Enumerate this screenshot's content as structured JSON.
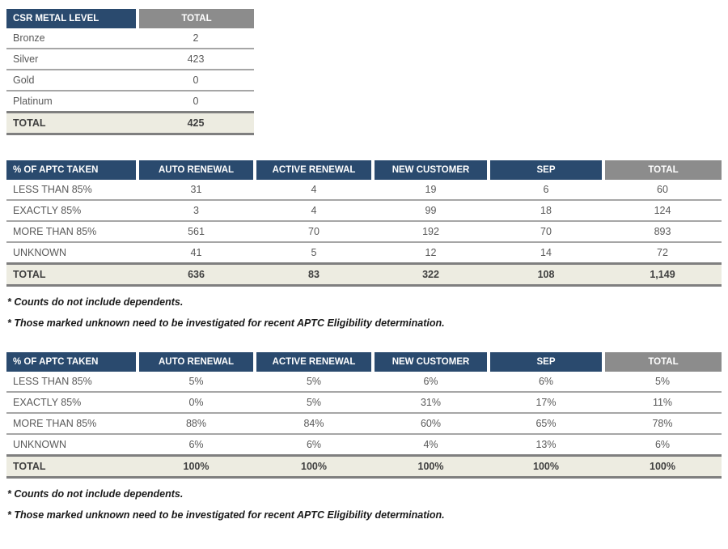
{
  "colors": {
    "header_navy": "#2A4A6E",
    "header_gray": "#8C8C8C",
    "total_row_bg": "#EDECE1",
    "thick_border": "#7F7F7F",
    "row_border": "#A6A6A6",
    "cell_text": "#595959",
    "header_text": "#FFFFFF"
  },
  "metal_table": {
    "headers": [
      "CSR METAL LEVEL",
      "TOTAL"
    ],
    "rows": [
      [
        "Bronze",
        "2"
      ],
      [
        "Silver",
        "423"
      ],
      [
        "Gold",
        "0"
      ],
      [
        "Platinum",
        "0"
      ]
    ],
    "total_row": [
      "TOTAL",
      "425"
    ]
  },
  "aptc_counts_table": {
    "headers": [
      "% OF APTC TAKEN",
      "AUTO RENEWAL",
      "ACTIVE RENEWAL",
      "NEW CUSTOMER",
      "SEP",
      "TOTAL"
    ],
    "rows": [
      [
        "LESS THAN 85%",
        "31",
        "4",
        "19",
        "6",
        "60"
      ],
      [
        "EXACTLY 85%",
        "3",
        "4",
        "99",
        "18",
        "124"
      ],
      [
        "MORE THAN 85%",
        "561",
        "70",
        "192",
        "70",
        "893"
      ],
      [
        "UNKNOWN",
        "41",
        "5",
        "12",
        "14",
        "72"
      ]
    ],
    "total_row": [
      "TOTAL",
      "636",
      "83",
      "322",
      "108",
      "1,149"
    ],
    "footnotes": [
      "* Counts do not include dependents.",
      "* Those marked unknown need to be investigated for recent APTC Eligibility determination."
    ]
  },
  "aptc_percent_table": {
    "headers": [
      "% OF APTC TAKEN",
      "AUTO RENEWAL",
      "ACTIVE RENEWAL",
      "NEW CUSTOMER",
      "SEP",
      "TOTAL"
    ],
    "rows": [
      [
        "LESS THAN 85%",
        "5%",
        "5%",
        "6%",
        "6%",
        "5%"
      ],
      [
        "EXACTLY 85%",
        "0%",
        "5%",
        "31%",
        "17%",
        "11%"
      ],
      [
        "MORE THAN 85%",
        "88%",
        "84%",
        "60%",
        "65%",
        "78%"
      ],
      [
        "UNKNOWN",
        "6%",
        "6%",
        "4%",
        "13%",
        "6%"
      ]
    ],
    "total_row": [
      "TOTAL",
      "100%",
      "100%",
      "100%",
      "100%",
      "100%"
    ],
    "footnotes": [
      "* Counts do not include dependents.",
      "* Those marked unknown need to be investigated for recent APTC Eligibility determination."
    ]
  }
}
